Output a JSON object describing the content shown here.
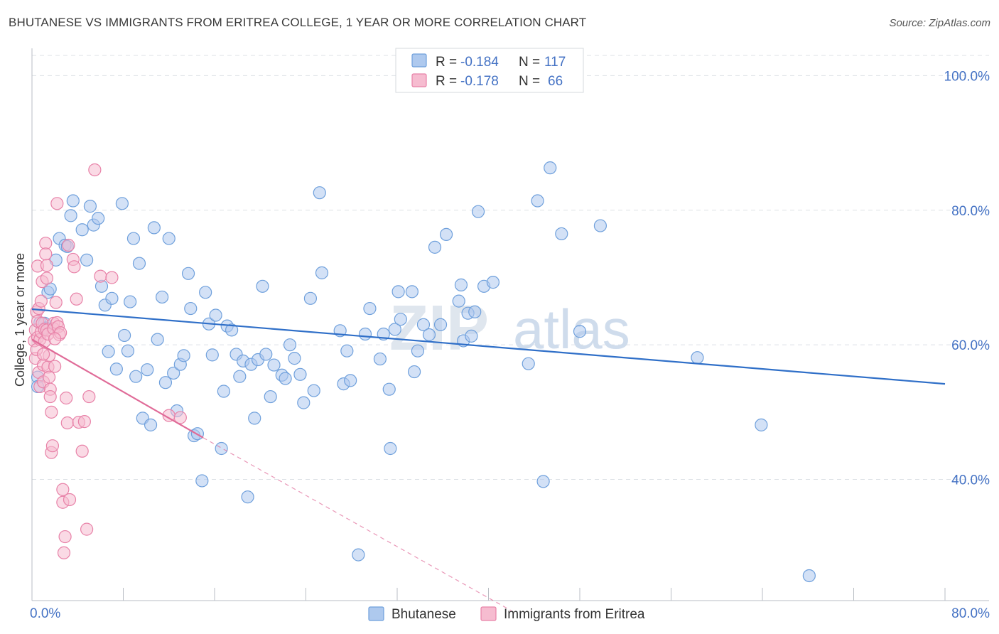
{
  "header": {
    "title": "BHUTANESE VS IMMIGRANTS FROM ERITREA COLLEGE, 1 YEAR OR MORE CORRELATION CHART",
    "source": "Source: ZipAtlas.com"
  },
  "watermark": {
    "zip": "ZIP",
    "atlas": "atlas"
  },
  "colors": {
    "blue": "#6fa0dc",
    "blue_fill": "#aec9ee",
    "blue_line": "#2f6fc8",
    "pink": "#e882a8",
    "pink_fill": "#f6bcd0",
    "pink_line": "#e06b98",
    "grid": "#dde1e6",
    "tick_text": "#4472c4"
  },
  "legend_top": {
    "rows": [
      {
        "r_label": "R = ",
        "r_value": "-0.184",
        "n_label": "N = ",
        "n_value": "117"
      },
      {
        "r_label": "R = ",
        "r_value": "-0.178",
        "n_label": "N = ",
        "n_value": "66"
      }
    ]
  },
  "legend_bottom": {
    "items": [
      {
        "label": "Bhutanese"
      },
      {
        "label": "Immigrants from Eritrea"
      }
    ]
  },
  "chart_data": {
    "type": "scatter",
    "title": "BHUTANESE VS IMMIGRANTS FROM ERITREA COLLEGE, 1 YEAR OR MORE CORRELATION CHART",
    "xlabel": "",
    "ylabel": "College, 1 year or more",
    "xlim": [
      0,
      80
    ],
    "ylim": [
      22,
      103
    ],
    "x_tick_labels": [
      {
        "value": 0,
        "label": "0.0%"
      },
      {
        "value": 80,
        "label": "80.0%"
      }
    ],
    "y_tick_labels": [
      {
        "value": 40,
        "label": "40.0%"
      },
      {
        "value": 60,
        "label": "60.0%"
      },
      {
        "value": 80,
        "label": "80.0%"
      },
      {
        "value": 100,
        "label": "100.0%"
      }
    ],
    "grid": true,
    "legend_placement": "top-center",
    "series": [
      {
        "name": "Bhutanese",
        "r": -0.184,
        "n": 117,
        "trend": {
          "x0": 0,
          "y0": 65.3,
          "x1": 80,
          "y1": 54.2
        },
        "points": [
          [
            0.5,
            55.2
          ],
          [
            0.5,
            53.8
          ],
          [
            0.7,
            63.3
          ],
          [
            1.1,
            63.2
          ],
          [
            1.2,
            62.5
          ],
          [
            1.4,
            67.8
          ],
          [
            1.6,
            68.3
          ],
          [
            2.1,
            72.6
          ],
          [
            2.4,
            75.8
          ],
          [
            2.9,
            74.8
          ],
          [
            3.1,
            74.6
          ],
          [
            3.4,
            79.2
          ],
          [
            3.6,
            81.4
          ],
          [
            4.4,
            77.1
          ],
          [
            4.8,
            72.6
          ],
          [
            5.1,
            80.6
          ],
          [
            5.4,
            77.8
          ],
          [
            5.8,
            78.8
          ],
          [
            6.1,
            68.7
          ],
          [
            6.4,
            65.9
          ],
          [
            6.7,
            59.0
          ],
          [
            7.0,
            66.9
          ],
          [
            7.4,
            56.4
          ],
          [
            7.9,
            81.0
          ],
          [
            8.1,
            61.4
          ],
          [
            8.4,
            59.1
          ],
          [
            8.6,
            66.4
          ],
          [
            8.9,
            75.8
          ],
          [
            9.1,
            55.3
          ],
          [
            9.4,
            72.1
          ],
          [
            9.7,
            49.1
          ],
          [
            10.1,
            56.3
          ],
          [
            10.4,
            48.1
          ],
          [
            10.7,
            77.4
          ],
          [
            11.0,
            60.8
          ],
          [
            11.4,
            67.1
          ],
          [
            11.7,
            54.4
          ],
          [
            12.0,
            75.8
          ],
          [
            12.4,
            55.8
          ],
          [
            12.7,
            50.2
          ],
          [
            13.0,
            57.1
          ],
          [
            13.3,
            58.4
          ],
          [
            13.7,
            70.6
          ],
          [
            13.9,
            65.4
          ],
          [
            14.2,
            46.5
          ],
          [
            14.5,
            46.8
          ],
          [
            14.9,
            39.8
          ],
          [
            15.2,
            67.8
          ],
          [
            15.5,
            63.1
          ],
          [
            15.8,
            58.5
          ],
          [
            16.1,
            64.4
          ],
          [
            16.6,
            44.6
          ],
          [
            16.8,
            53.1
          ],
          [
            17.1,
            62.8
          ],
          [
            17.5,
            62.2
          ],
          [
            17.9,
            58.6
          ],
          [
            18.2,
            55.3
          ],
          [
            18.5,
            57.6
          ],
          [
            18.9,
            37.4
          ],
          [
            19.2,
            57.1
          ],
          [
            19.5,
            49.1
          ],
          [
            19.8,
            57.8
          ],
          [
            20.2,
            68.7
          ],
          [
            20.5,
            58.6
          ],
          [
            20.9,
            52.3
          ],
          [
            21.2,
            57.0
          ],
          [
            21.9,
            55.5
          ],
          [
            22.2,
            55.0
          ],
          [
            22.6,
            60.0
          ],
          [
            23.0,
            58.0
          ],
          [
            23.5,
            55.6
          ],
          [
            23.8,
            51.4
          ],
          [
            24.4,
            66.9
          ],
          [
            24.7,
            53.2
          ],
          [
            25.2,
            82.6
          ],
          [
            25.4,
            70.7
          ],
          [
            27.0,
            62.1
          ],
          [
            27.3,
            54.2
          ],
          [
            27.6,
            59.1
          ],
          [
            27.9,
            54.7
          ],
          [
            28.6,
            28.8
          ],
          [
            29.2,
            61.6
          ],
          [
            29.6,
            65.4
          ],
          [
            30.5,
            57.9
          ],
          [
            30.8,
            61.6
          ],
          [
            31.3,
            53.4
          ],
          [
            31.4,
            44.6
          ],
          [
            31.8,
            62.3
          ],
          [
            32.1,
            67.9
          ],
          [
            32.3,
            63.8
          ],
          [
            33.3,
            67.9
          ],
          [
            33.5,
            56.0
          ],
          [
            33.8,
            59.1
          ],
          [
            34.3,
            63.0
          ],
          [
            34.8,
            61.5
          ],
          [
            35.3,
            74.5
          ],
          [
            35.8,
            63.0
          ],
          [
            36.3,
            76.4
          ],
          [
            37.4,
            66.5
          ],
          [
            37.6,
            68.9
          ],
          [
            37.8,
            60.6
          ],
          [
            38.2,
            64.7
          ],
          [
            38.5,
            61.3
          ],
          [
            38.8,
            64.9
          ],
          [
            39.1,
            79.8
          ],
          [
            39.6,
            68.7
          ],
          [
            40.4,
            69.3
          ],
          [
            43.5,
            57.2
          ],
          [
            44.8,
            39.7
          ],
          [
            44.3,
            81.4
          ],
          [
            45.4,
            86.3
          ],
          [
            46.4,
            76.5
          ],
          [
            48.0,
            62.0
          ],
          [
            49.8,
            77.7
          ],
          [
            58.3,
            58.1
          ],
          [
            63.9,
            48.1
          ],
          [
            68.1,
            25.7
          ]
        ]
      },
      {
        "name": "Immigrants from Eritrea",
        "r": -0.178,
        "n": 66,
        "trend": {
          "x0": 0,
          "y0": 60.8,
          "x1": 15,
          "y1": 46.2
        },
        "trend_dashed": {
          "x0": 15,
          "y0": 46.2,
          "x1": 42,
          "y1": 20.5
        },
        "points": [
          [
            0.2,
            60.6
          ],
          [
            0.3,
            58.0
          ],
          [
            0.3,
            62.2
          ],
          [
            0.4,
            59.3
          ],
          [
            0.4,
            64.9
          ],
          [
            0.5,
            61.1
          ],
          [
            0.5,
            63.5
          ],
          [
            0.5,
            71.7
          ],
          [
            0.6,
            65.4
          ],
          [
            0.6,
            55.9
          ],
          [
            0.7,
            53.8
          ],
          [
            0.7,
            60.8
          ],
          [
            0.8,
            61.9
          ],
          [
            0.8,
            66.5
          ],
          [
            0.9,
            69.4
          ],
          [
            0.9,
            63.2
          ],
          [
            1.0,
            57.0
          ],
          [
            1.0,
            54.5
          ],
          [
            1.1,
            62.3
          ],
          [
            1.1,
            60.5
          ],
          [
            1.2,
            75.1
          ],
          [
            1.2,
            73.5
          ],
          [
            1.3,
            69.9
          ],
          [
            1.3,
            71.8
          ],
          [
            1.3,
            62.2
          ],
          [
            1.4,
            61.6
          ],
          [
            1.4,
            56.7
          ],
          [
            1.5,
            58.4
          ],
          [
            1.5,
            55.2
          ],
          [
            1.6,
            53.4
          ],
          [
            1.6,
            52.3
          ],
          [
            1.7,
            50.0
          ],
          [
            1.7,
            44.0
          ],
          [
            1.8,
            45.0
          ],
          [
            1.9,
            63.2
          ],
          [
            1.9,
            62.4
          ],
          [
            2.0,
            56.8
          ],
          [
            2.1,
            66.3
          ],
          [
            2.2,
            63.3
          ],
          [
            2.2,
            81.0
          ],
          [
            2.3,
            62.7
          ],
          [
            2.4,
            61.5
          ],
          [
            2.5,
            61.8
          ],
          [
            2.7,
            36.6
          ],
          [
            2.7,
            38.5
          ],
          [
            2.8,
            29.1
          ],
          [
            2.9,
            31.5
          ],
          [
            3.0,
            52.1
          ],
          [
            3.1,
            48.4
          ],
          [
            3.2,
            74.8
          ],
          [
            3.3,
            37.0
          ],
          [
            3.6,
            72.7
          ],
          [
            3.7,
            71.6
          ],
          [
            3.9,
            66.8
          ],
          [
            4.1,
            48.5
          ],
          [
            4.4,
            44.2
          ],
          [
            4.6,
            48.6
          ],
          [
            4.8,
            32.6
          ],
          [
            5.0,
            52.3
          ],
          [
            5.5,
            86.0
          ],
          [
            6.0,
            70.2
          ],
          [
            7.0,
            70.0
          ],
          [
            12.0,
            49.5
          ],
          [
            13.0,
            49.2
          ],
          [
            2.0,
            60.9
          ],
          [
            1.0,
            58.6
          ]
        ]
      }
    ]
  }
}
